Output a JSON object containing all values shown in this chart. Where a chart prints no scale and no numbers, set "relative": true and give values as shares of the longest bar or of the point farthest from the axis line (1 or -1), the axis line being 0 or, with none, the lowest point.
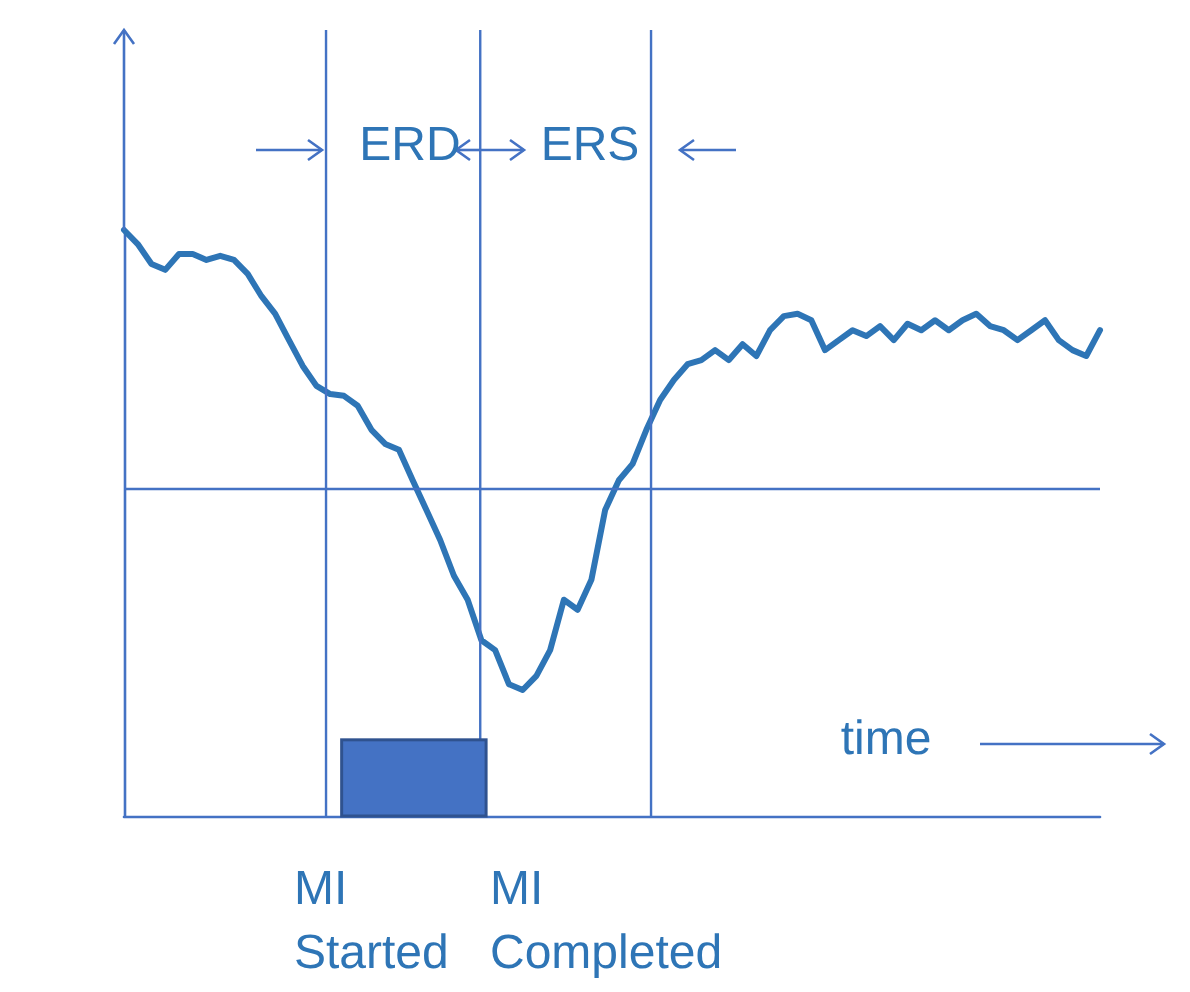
{
  "chart_data": {
    "type": "line",
    "relative": true,
    "color": "#2e75b6",
    "categories": [
      null,
      null,
      null,
      null,
      null,
      null,
      null,
      null,
      null,
      null,
      null,
      null,
      null,
      null,
      null,
      null,
      null,
      null,
      null,
      null,
      null,
      null,
      null,
      null,
      null,
      null,
      null,
      null,
      null,
      null,
      null,
      null,
      null,
      null,
      null,
      null,
      null,
      null,
      null,
      null,
      null,
      null,
      null,
      null,
      null,
      null,
      null,
      null,
      null,
      null,
      null,
      null,
      null,
      null,
      null,
      null,
      null,
      null,
      null,
      null,
      null,
      null,
      null,
      null,
      null,
      null,
      null,
      null,
      null,
      null,
      null,
      null
    ],
    "values": [
      1,
      0.976,
      0.942,
      0.932,
      0.959,
      0.959,
      0.949,
      0.956,
      0.949,
      0.925,
      0.887,
      0.857,
      0.812,
      0.768,
      0.734,
      0.72,
      0.717,
      0.7,
      0.659,
      0.635,
      0.625,
      0.573,
      0.522,
      0.471,
      0.41,
      0.369,
      0.3,
      0.283,
      0.225,
      0.215,
      0.239,
      0.283,
      0.369,
      0.352,
      0.403,
      0.522,
      0.573,
      0.601,
      0.659,
      0.71,
      0.744,
      0.771,
      0.778,
      0.795,
      0.778,
      0.805,
      0.785,
      0.829,
      0.853,
      0.857,
      0.846,
      0.795,
      0.812,
      0.829,
      0.819,
      0.836,
      0.812,
      0.84,
      0.829,
      0.846,
      0.829,
      0.846,
      0.857,
      0.836,
      0.829,
      0.812,
      0.829,
      0.846,
      0.812,
      0.795,
      0.785,
      0.829
    ],
    "grid": false,
    "marker": "none",
    "line_style": "solid",
    "ref_lines": [
      {
        "axis": "y",
        "value": 0.563,
        "color": "#4472c4"
      }
    ],
    "annotations": [
      "ERD",
      "ERS",
      "time",
      "MI\nStarted",
      "MI\nCompleted"
    ]
  }
}
